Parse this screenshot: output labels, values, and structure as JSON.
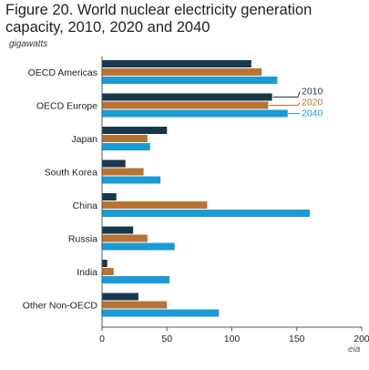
{
  "title": "Figure 20. World nuclear electricity generation capacity, 2010, 2020 and 2040",
  "unit": "gigawatts",
  "logo": "eia",
  "colors": {
    "2010": "#17374d",
    "2020": "#b87333",
    "2040": "#1a9bd6",
    "axis": "#555555"
  },
  "chart_data": {
    "type": "bar",
    "orientation": "horizontal",
    "categories": [
      "OECD Americas",
      "OECD Europe",
      "Japan",
      "South Korea",
      "China",
      "Russia",
      "India",
      "Other Non-OECD"
    ],
    "series": [
      {
        "name": "2010",
        "values": [
          115,
          131,
          50,
          18,
          11,
          24,
          4,
          28
        ]
      },
      {
        "name": "2020",
        "values": [
          123,
          128,
          35,
          32,
          81,
          35,
          9,
          50
        ]
      },
      {
        "name": "2040",
        "values": [
          135,
          143,
          37,
          45,
          160,
          56,
          52,
          90
        ]
      }
    ],
    "xlim": [
      0,
      200
    ],
    "xticks": [
      0,
      50,
      100,
      150,
      200
    ],
    "xlabel": "",
    "ylabel": "gigawatts",
    "grid": false,
    "legend": "direct labels beside OECD Europe bars"
  }
}
